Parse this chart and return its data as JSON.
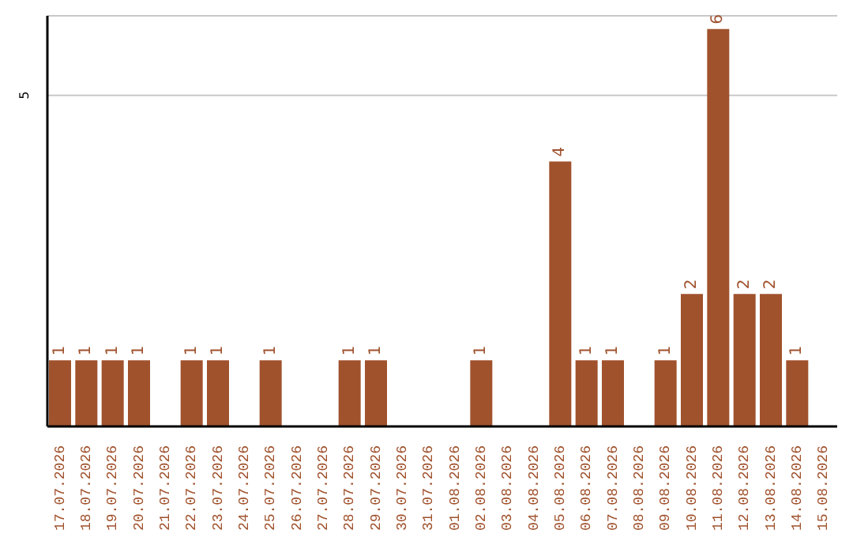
{
  "chart_data": {
    "type": "bar",
    "categories": [
      "17.07.2026",
      "18.07.2026",
      "19.07.2026",
      "20.07.2026",
      "21.07.2026",
      "22.07.2026",
      "23.07.2026",
      "24.07.2026",
      "25.07.2026",
      "26.07.2026",
      "27.07.2026",
      "28.07.2026",
      "29.07.2026",
      "30.07.2026",
      "31.07.2026",
      "01.08.2026",
      "02.08.2026",
      "03.08.2026",
      "04.08.2026",
      "05.08.2026",
      "06.08.2026",
      "07.08.2026",
      "08.08.2026",
      "09.08.2026",
      "10.08.2026",
      "11.08.2026",
      "12.08.2026",
      "13.08.2026",
      "14.08.2026",
      "15.08.2026"
    ],
    "values": [
      1,
      1,
      1,
      1,
      0,
      1,
      1,
      0,
      1,
      0,
      0,
      1,
      1,
      0,
      0,
      0,
      1,
      0,
      0,
      4,
      1,
      1,
      0,
      1,
      2,
      6,
      2,
      2,
      1,
      0
    ],
    "value_labels": [
      "1",
      "1",
      "1",
      "1",
      null,
      "1",
      "1",
      null,
      "1",
      null,
      null,
      "1",
      "1",
      null,
      null,
      null,
      "1",
      null,
      null,
      "4",
      "1",
      "1",
      null,
      "1",
      "2",
      "6",
      "2",
      "2",
      "1",
      null
    ],
    "color": "#a0522d",
    "ylim": [
      0,
      6.2
    ],
    "yticks": [
      5
    ],
    "grid": "y"
  }
}
